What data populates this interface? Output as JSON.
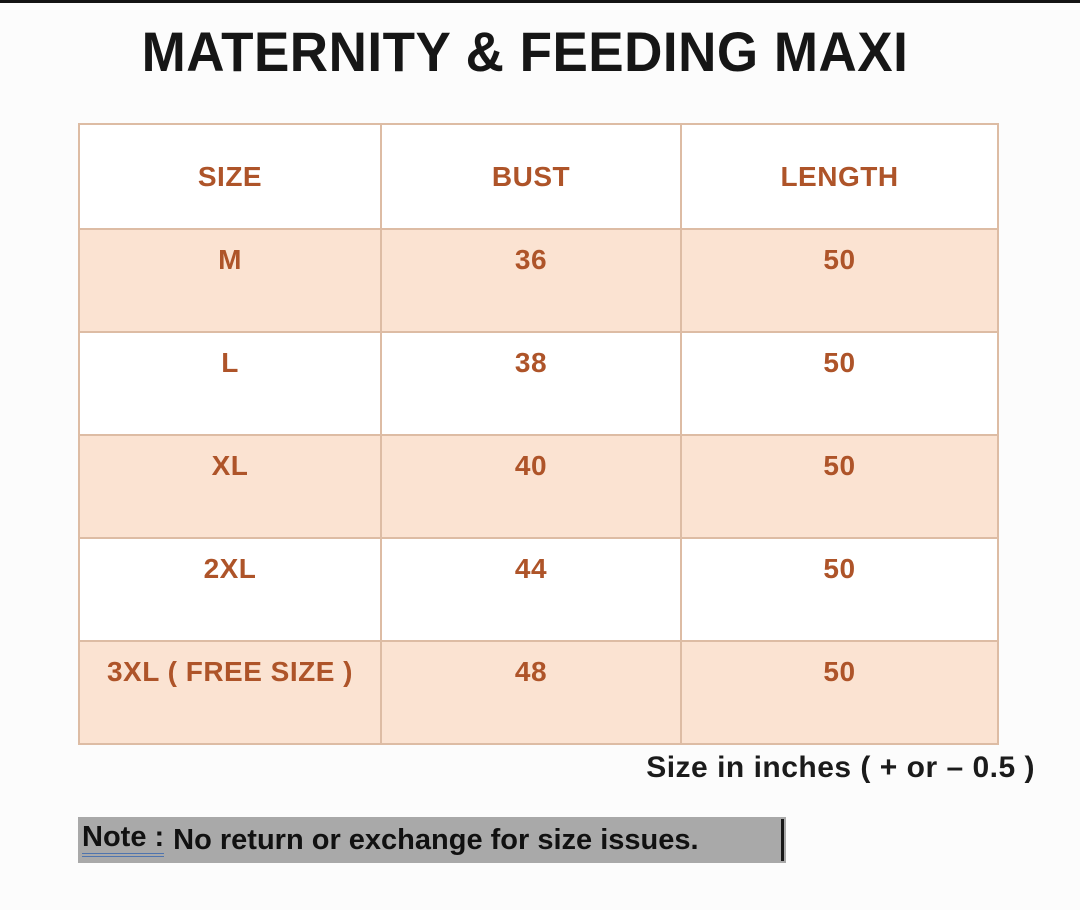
{
  "page": {
    "title": "MATERNITY & FEEDING MAXI",
    "unit_note": "Size in inches ( + or – 0.5 )",
    "note_label": "Note :",
    "note_text": "No return or exchange for size issues."
  },
  "chart_data": {
    "type": "table",
    "title": "MATERNITY & FEEDING MAXI",
    "columns": [
      "SIZE",
      "BUST",
      "LENGTH"
    ],
    "rows": [
      [
        "M",
        "36",
        "50"
      ],
      [
        "L",
        "38",
        "50"
      ],
      [
        "XL",
        "40",
        "50"
      ],
      [
        "2XL",
        "44",
        "50"
      ],
      [
        "3XL ( FREE SIZE )",
        "48",
        "50"
      ]
    ],
    "units": "inches",
    "tolerance": "+ or – 0.5",
    "highlighted_rows": [
      "M",
      "XL",
      "3XL ( FREE SIZE )"
    ]
  },
  "colors": {
    "accent_text": "#ae5429",
    "row_highlight": "#fbe3d2",
    "table_border": "#ddbca4",
    "title_text": "#161616",
    "note_highlight": "#a9a9a9",
    "note_underline": "#4f74ae"
  }
}
